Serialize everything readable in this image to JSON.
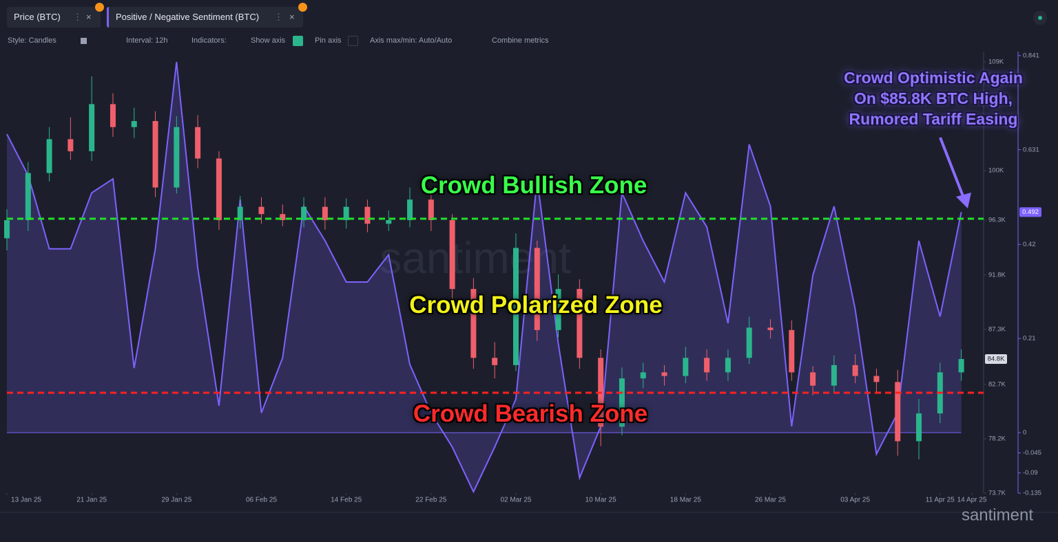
{
  "ui": {
    "toolbar": {
      "style": "Style: Candles",
      "interval": "Interval: 12h",
      "indicators": "Indicators:",
      "show_axis": "Show axis",
      "pin_axis": "Pin axis",
      "axis_minmax": "Axis max/min: Auto/Auto",
      "combine": "Combine metrics"
    },
    "watermark": "santiment",
    "brand": "santiment"
  },
  "chart_data": {
    "type": "combo",
    "zones": [
      "Crowd Bullish Zone",
      "Crowd Polarized Zone",
      "Crowd Bearish Zone"
    ],
    "callout": [
      "Crowd Optimistic Again",
      "On $85.8K BTC High,",
      "Rumored Tariff Easing"
    ],
    "x": [
      "2025-01-13",
      "2025-01-15",
      "2025-01-17",
      "2025-01-19",
      "2025-01-21",
      "2025-01-23",
      "2025-01-25",
      "2025-01-27",
      "2025-01-29",
      "2025-01-31",
      "2025-02-02",
      "2025-02-04",
      "2025-02-06",
      "2025-02-08",
      "2025-02-10",
      "2025-02-12",
      "2025-02-14",
      "2025-02-16",
      "2025-02-18",
      "2025-02-20",
      "2025-02-22",
      "2025-02-24",
      "2025-02-26",
      "2025-02-28",
      "2025-03-02",
      "2025-03-04",
      "2025-03-06",
      "2025-03-08",
      "2025-03-10",
      "2025-03-12",
      "2025-03-14",
      "2025-03-16",
      "2025-03-18",
      "2025-03-20",
      "2025-03-22",
      "2025-03-24",
      "2025-03-26",
      "2025-03-28",
      "2025-03-30",
      "2025-04-01",
      "2025-04-03",
      "2025-04-05",
      "2025-04-07",
      "2025-04-09",
      "2025-04-11",
      "2025-04-13"
    ],
    "xlim": [
      "2025-01-13",
      "2025-04-14"
    ],
    "xticks": [
      {
        "value": "2025-01-13",
        "label": "13 Jan 25"
      },
      {
        "value": "2025-01-21",
        "label": "21 Jan 25"
      },
      {
        "value": "2025-01-29",
        "label": "29 Jan 25"
      },
      {
        "value": "2025-02-06",
        "label": "06 Feb 25"
      },
      {
        "value": "2025-02-14",
        "label": "14 Feb 25"
      },
      {
        "value": "2025-02-22",
        "label": "22 Feb 25"
      },
      {
        "value": "2025-03-02",
        "label": "02 Mar 25"
      },
      {
        "value": "2025-03-10",
        "label": "10 Mar 25"
      },
      {
        "value": "2025-03-18",
        "label": "18 Mar 25"
      },
      {
        "value": "2025-03-26",
        "label": "26 Mar 25"
      },
      {
        "value": "2025-04-03",
        "label": "03 Apr 25"
      },
      {
        "value": "2025-04-11",
        "label": "11 Apr 25"
      },
      {
        "value": "2025-04-14",
        "label": "14 Apr 25"
      }
    ],
    "ylim": [
      73.7,
      110.25
    ],
    "yticks": [
      {
        "value": 73.7,
        "label": "73.7K"
      },
      {
        "value": 78.2,
        "label": "78.2K"
      },
      {
        "value": 82.7,
        "label": "82.7K"
      },
      {
        "value": 87.26,
        "label": "87.3K"
      },
      {
        "value": 91.76,
        "label": "91.8K"
      },
      {
        "value": 96.3,
        "label": "96.3K"
      },
      {
        "value": 100.4,
        "label": "100K"
      },
      {
        "value": 109.4,
        "label": "109K"
      }
    ],
    "y2lim": [
      -0.135,
      0.85
    ],
    "y2ticks": [
      -0.135,
      -0.09,
      -0.045,
      0,
      0.21,
      0.42,
      0.631,
      0.841
    ],
    "series": [
      {
        "name": "Price (BTC)",
        "type": "candlestick",
        "up_color": "#2bb58c",
        "down_color": "#ef5f6b",
        "badge": "84.8K",
        "open": [
          94.8,
          96.3,
          100.2,
          103,
          102,
          105.9,
          104,
          104.5,
          99,
          104,
          101.4,
          96.3,
          97.4,
          96.8,
          96.3,
          97.4,
          96.3,
          97.4,
          96,
          96.3,
          98,
          96.3,
          90.6,
          84.9,
          84.3,
          94,
          87.2,
          90.6,
          84.9,
          79.2,
          83.2,
          83.7,
          83.4,
          84.9,
          83.7,
          84.9,
          87.4,
          87.2,
          83.7,
          82.6,
          84.3,
          83.4,
          82.9,
          78,
          80.3,
          83.7
        ],
        "high": [
          97.2,
          101.1,
          104,
          104.8,
          108.2,
          106.8,
          105.6,
          105.3,
          104.9,
          105,
          102,
          98.3,
          98.2,
          97.6,
          98.2,
          98.2,
          98.1,
          98,
          97.1,
          99,
          98.7,
          96.8,
          91.5,
          86.2,
          95.2,
          94.6,
          91.8,
          91.4,
          85.6,
          84.1,
          84.5,
          84.3,
          85.8,
          85.6,
          85.6,
          88.3,
          88.1,
          88,
          84.2,
          85.1,
          85.2,
          84,
          83.9,
          81.5,
          84.5,
          85.6
        ],
        "low": [
          93.8,
          95.4,
          99.5,
          101.3,
          101.2,
          103.2,
          103.1,
          98.2,
          98.5,
          100.6,
          95.5,
          95.6,
          96,
          95.8,
          95.7,
          95.5,
          95.6,
          95.3,
          95.4,
          95.7,
          95.4,
          89.8,
          84,
          83.2,
          83.8,
          86.3,
          86.6,
          84,
          77.6,
          78.5,
          82.4,
          82.6,
          82.8,
          83,
          83,
          84.4,
          86.5,
          83,
          81.8,
          82,
          82.8,
          82.1,
          76.8,
          76.5,
          79.5,
          83
        ],
        "close": [
          96.3,
          100.2,
          103,
          102,
          105.9,
          104,
          104.5,
          99,
          104,
          101.4,
          96.3,
          97.4,
          96.8,
          96.3,
          97.4,
          96.3,
          97.4,
          96,
          96.3,
          98,
          96.3,
          90.6,
          84.9,
          84.3,
          94,
          87.2,
          90.6,
          84.9,
          79.2,
          83.2,
          83.7,
          83.4,
          84.9,
          83.7,
          84.9,
          87.4,
          87.2,
          83.7,
          82.6,
          84.3,
          83.4,
          82.9,
          78,
          80.3,
          83.7,
          84.8
        ]
      },
      {
        "name": "Positive / Negative Sentiment (BTC)",
        "type": "area",
        "axis": "y2",
        "color": "#7d62ff",
        "badge": "0.492",
        "values": [
          0.666,
          0.574,
          0.41,
          0.41,
          0.535,
          0.566,
          0.144,
          0.41,
          0.827,
          0.367,
          0.06,
          0.52,
          0.044,
          0.167,
          0.505,
          0.428,
          0.336,
          0.336,
          0.397,
          0.152,
          0.044,
          -0.032,
          -0.132,
          -0.032,
          0.075,
          0.566,
          0.198,
          -0.101,
          0.014,
          0.535,
          0.428,
          0.336,
          0.535,
          0.459,
          0.244,
          0.643,
          0.505,
          0.014,
          0.351,
          0.505,
          0.275,
          -0.048,
          0.044,
          0.428,
          0.259,
          0.492
        ]
      }
    ]
  }
}
